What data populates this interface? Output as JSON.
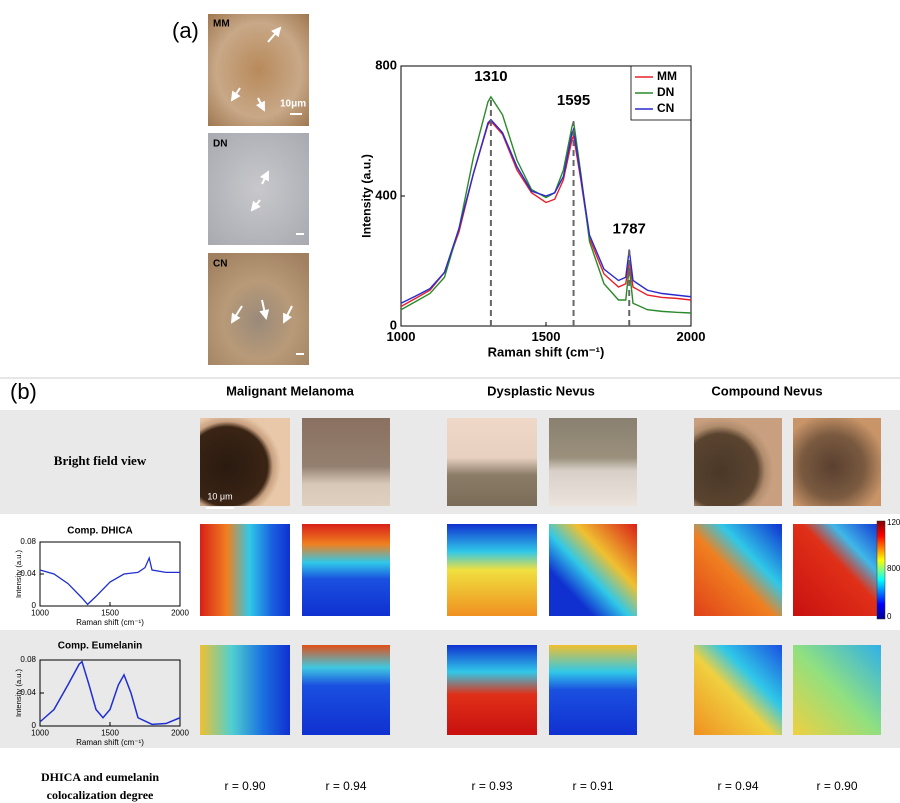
{
  "panel_a": {
    "label": "(a)",
    "micrographs": [
      {
        "label": "MM",
        "scale": "10μm"
      },
      {
        "label": "DN"
      },
      {
        "label": "CN"
      }
    ]
  },
  "chart_data": [
    {
      "type": "line",
      "x": [
        1000,
        1050,
        1100,
        1150,
        1200,
        1250,
        1300,
        1310,
        1350,
        1400,
        1450,
        1500,
        1530,
        1560,
        1590,
        1595,
        1620,
        1650,
        1700,
        1750,
        1775,
        1787,
        1800,
        1850,
        1900,
        1950,
        2000
      ],
      "series": [
        {
          "name": "MM",
          "color": "#e8202a",
          "values": [
            60,
            85,
            110,
            165,
            290,
            470,
            620,
            630,
            590,
            480,
            410,
            380,
            390,
            450,
            575,
            585,
            450,
            270,
            160,
            120,
            130,
            200,
            120,
            95,
            88,
            85,
            80
          ]
        },
        {
          "name": "DN",
          "color": "#2a8a2a",
          "values": [
            50,
            75,
            100,
            150,
            300,
            520,
            690,
            705,
            650,
            510,
            420,
            395,
            410,
            480,
            615,
            630,
            470,
            260,
            130,
            80,
            80,
            180,
            70,
            50,
            45,
            42,
            40
          ]
        },
        {
          "name": "CN",
          "color": "#2a2ad0",
          "values": [
            70,
            92,
            115,
            165,
            300,
            470,
            625,
            635,
            595,
            490,
            415,
            400,
            410,
            460,
            595,
            605,
            460,
            280,
            175,
            140,
            150,
            235,
            140,
            110,
            100,
            95,
            90
          ]
        }
      ],
      "xlim": [
        1000,
        2000
      ],
      "ylim": [
        0,
        800
      ],
      "xticks": [
        1000,
        1500,
        2000
      ],
      "yticks": [
        0,
        400,
        800
      ],
      "xlabel": "Raman shift (cm⁻¹)",
      "ylabel": "Intensity (a.u.)",
      "peaks": [
        1310,
        1595,
        1787
      ],
      "legend": "upper right"
    },
    {
      "type": "line",
      "x": [
        1000,
        1100,
        1200,
        1300,
        1340,
        1400,
        1500,
        1600,
        1700,
        1750,
        1780,
        1800,
        1900,
        2000
      ],
      "values": [
        0.045,
        0.04,
        0.028,
        0.01,
        0.002,
        0.012,
        0.03,
        0.04,
        0.042,
        0.048,
        0.06,
        0.045,
        0.042,
        0.042
      ],
      "color": "#1f2fd0",
      "xlim": [
        1000,
        2000
      ],
      "ylim": [
        0,
        0.08
      ],
      "xticks": [
        1000,
        1500,
        2000
      ],
      "yticks": [
        0,
        0.04,
        0.08
      ],
      "xlabel": "Raman shift (cm⁻¹)",
      "ylabel": "Intensity (a.u.)"
    },
    {
      "type": "line",
      "x": [
        1000,
        1100,
        1200,
        1280,
        1300,
        1350,
        1400,
        1450,
        1500,
        1560,
        1600,
        1650,
        1700,
        1800,
        1900,
        2000
      ],
      "values": [
        0.005,
        0.02,
        0.05,
        0.075,
        0.078,
        0.05,
        0.02,
        0.01,
        0.02,
        0.05,
        0.062,
        0.04,
        0.01,
        0.002,
        0.003,
        0.01
      ],
      "color": "#1f2fd0",
      "xlim": [
        1000,
        2000
      ],
      "ylim": [
        0,
        0.08
      ],
      "xticks": [
        1000,
        1500,
        2000
      ],
      "yticks": [
        0,
        0.04,
        0.08
      ],
      "xlabel": "Raman shift (cm⁻¹)",
      "ylabel": "Intensity (a.u.)"
    }
  ],
  "panel_b": {
    "label": "(b)",
    "columns": [
      "Malignant Melanoma",
      "Dysplastic Nevus",
      "Compound Nevus"
    ],
    "rows": [
      "Bright field view",
      "Comp. DHICA",
      "Comp. Eumelanin"
    ],
    "scale_bar": "10 μm",
    "colorbar_ticks": [
      "120",
      "800",
      "0"
    ],
    "colocalization_label": [
      "DHICA and eumelanin",
      "colocalization degree"
    ],
    "r_values": [
      "r = 0.90",
      "r = 0.94",
      "r = 0.93",
      "r = 0.91",
      "r = 0.94",
      "r = 0.90"
    ]
  }
}
